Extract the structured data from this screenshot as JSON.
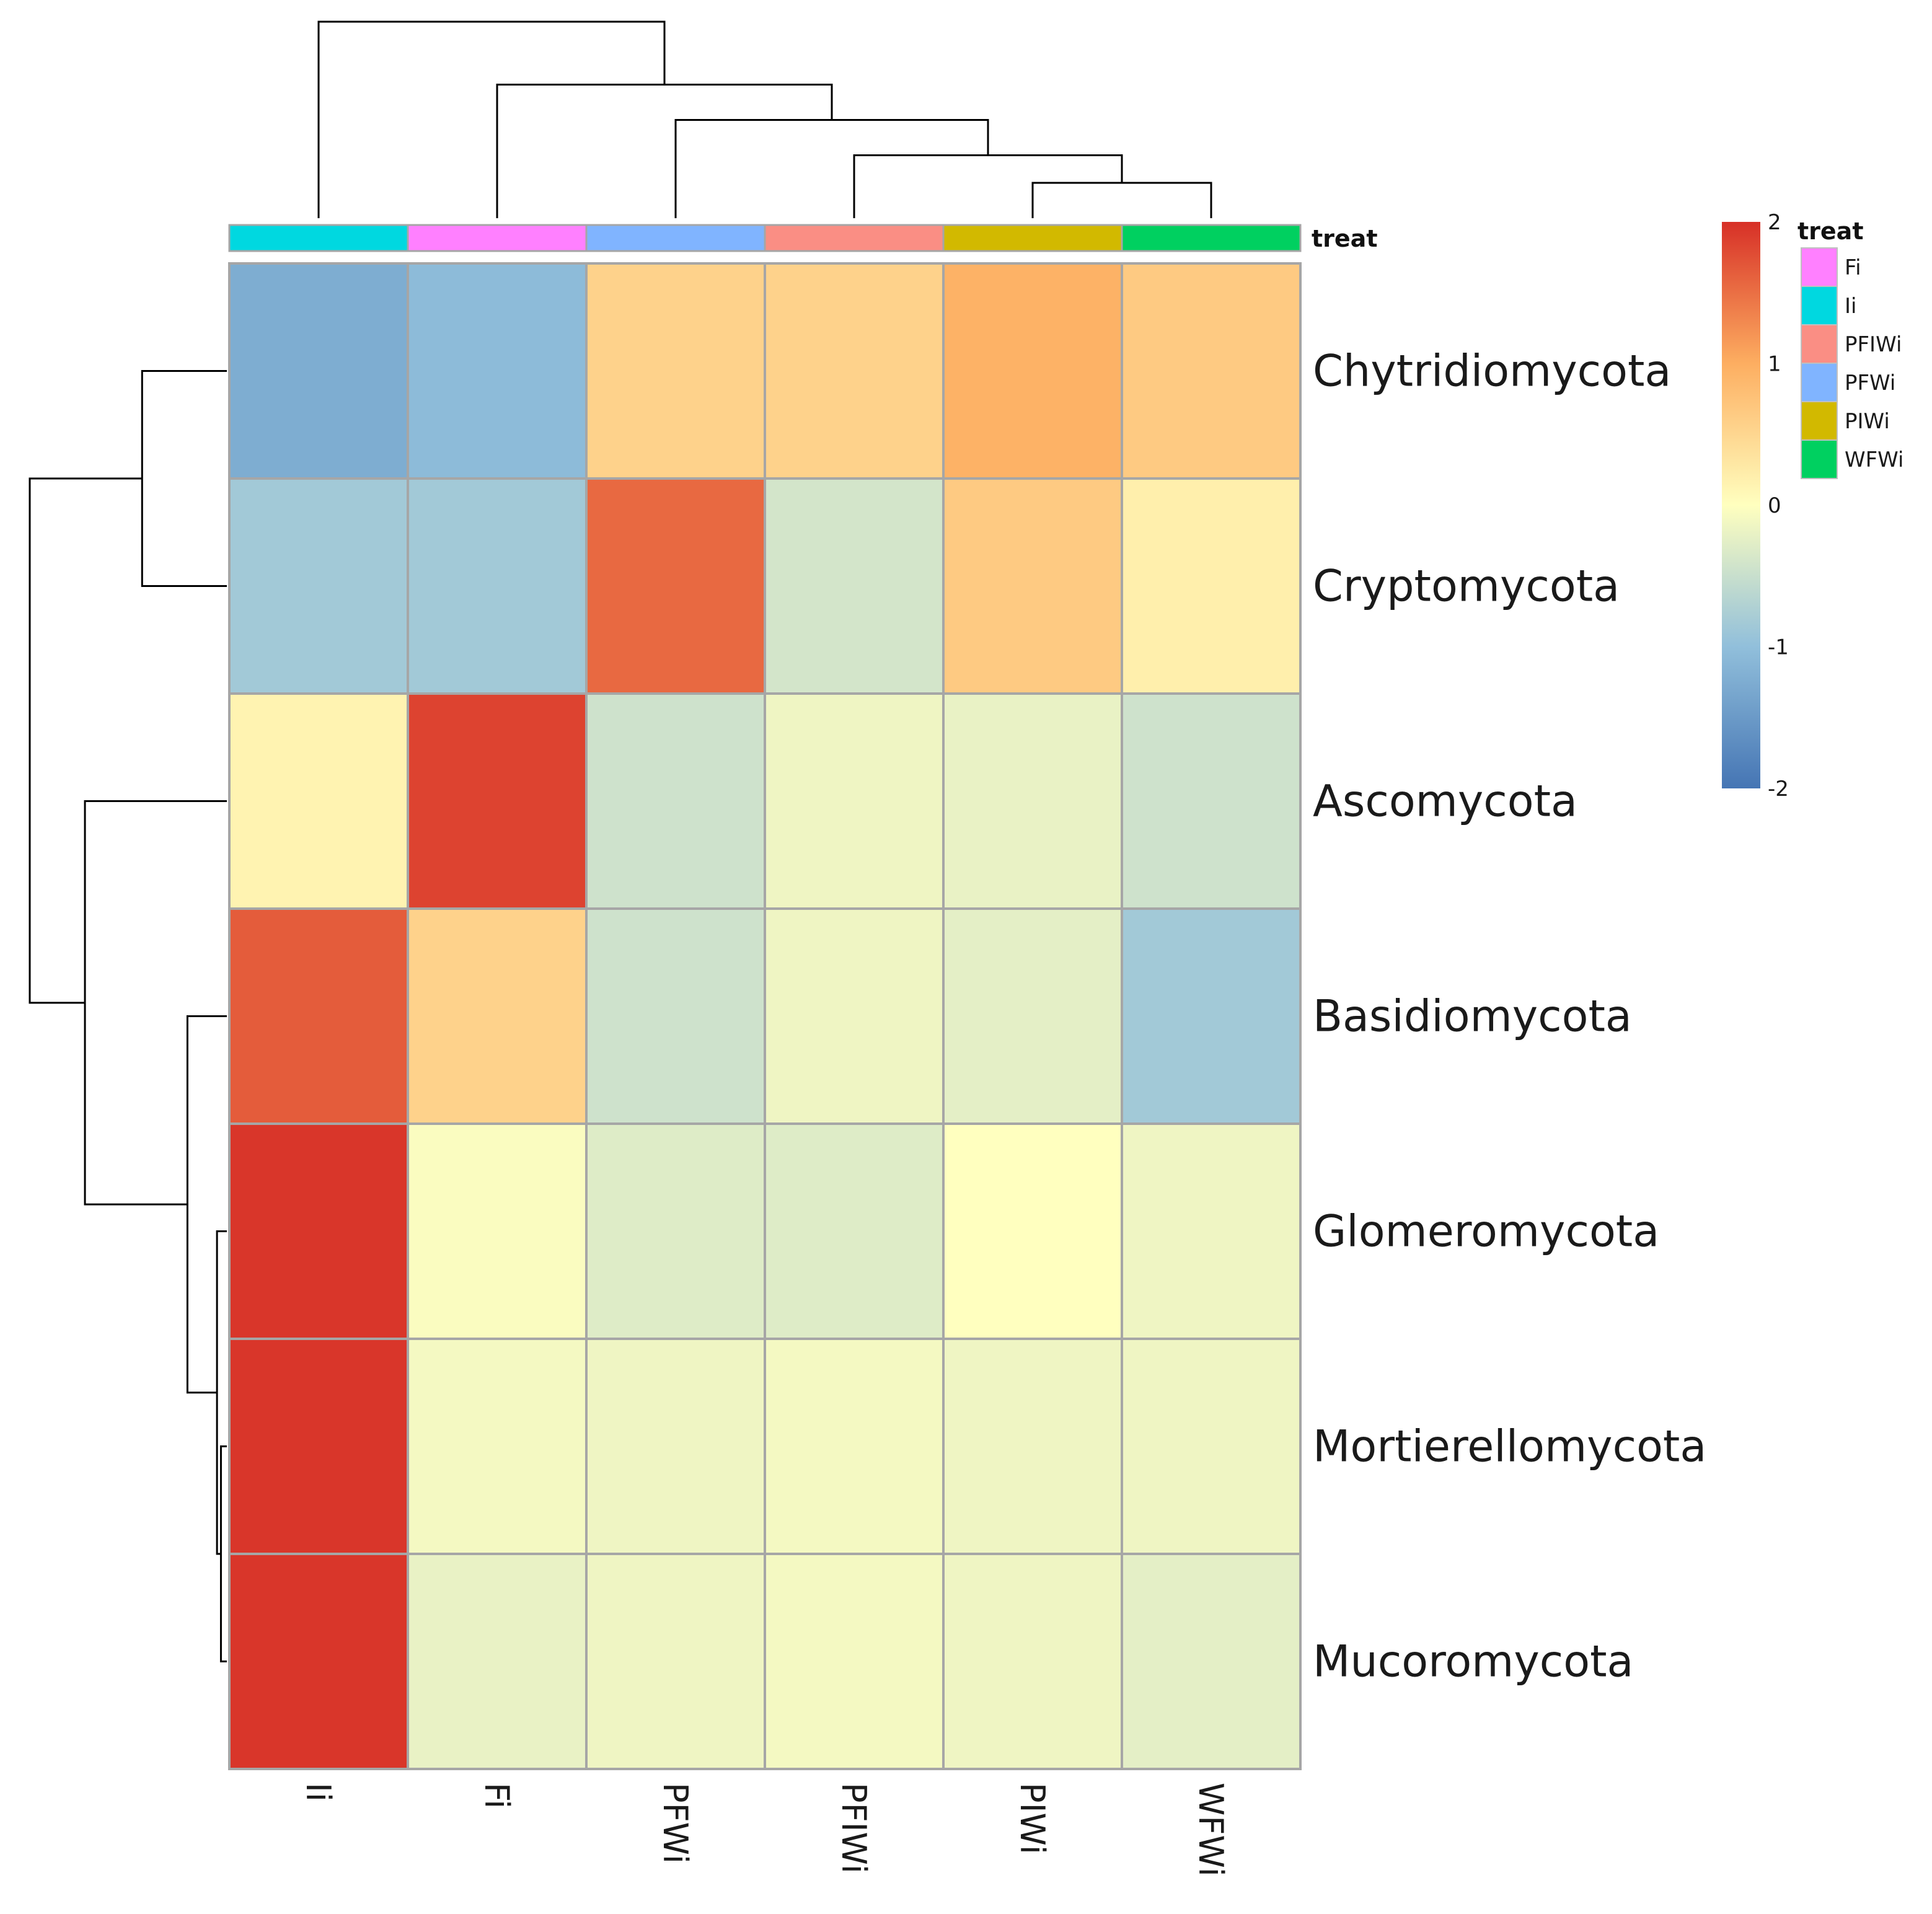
{
  "chart_data": {
    "type": "heatmap",
    "title": "",
    "columns": [
      "Ii",
      "Fi",
      "PFWi",
      "PFIWi",
      "PIWi",
      "WFWi"
    ],
    "rows": [
      "Chytridiomycota",
      "Cryptomycota",
      "Ascomycota",
      "Basidiomycota",
      "Glomeromycota",
      "Mortierellomycota",
      "Mucoromycota"
    ],
    "values": [
      [
        -1.25,
        -1.05,
        0.55,
        0.55,
        0.95,
        0.65
      ],
      [
        -0.85,
        -0.85,
        1.55,
        -0.4,
        0.65,
        0.2
      ],
      [
        0.15,
        1.85,
        -0.45,
        -0.15,
        -0.2,
        -0.45
      ],
      [
        1.65,
        0.55,
        -0.45,
        -0.15,
        -0.25,
        -0.85
      ],
      [
        1.95,
        -0.05,
        -0.3,
        -0.3,
        0.0,
        -0.15
      ],
      [
        1.95,
        -0.1,
        -0.15,
        -0.1,
        -0.15,
        -0.15
      ],
      [
        1.95,
        -0.2,
        -0.15,
        -0.1,
        -0.15,
        -0.25
      ]
    ],
    "color_scale": {
      "min": -2,
      "max": 2,
      "ticks": [
        "2",
        "1",
        "0",
        "-1",
        "-2"
      ],
      "tick_values": [
        2,
        1,
        0,
        -1,
        -2
      ],
      "colors": [
        "#4575b4",
        "#91bfdb",
        "#ffffbf",
        "#fdae61",
        "#d73027"
      ]
    },
    "annotation": {
      "title": "treat",
      "column_treat": [
        "Ii",
        "Fi",
        "PFWi",
        "PFIWi",
        "PIWi",
        "WFWi"
      ],
      "legend": [
        {
          "label": "Fi",
          "color": "#ff80ff"
        },
        {
          "label": "Ii",
          "color": "#00d8e0"
        },
        {
          "label": "PFIWi",
          "color": "#fa8e84"
        },
        {
          "label": "PFWi",
          "color": "#80b4ff"
        },
        {
          "label": "PIWi",
          "color": "#d2b900"
        },
        {
          "label": "WFWi",
          "color": "#00d060"
        }
      ]
    },
    "col_dendrogram": [
      {
        "a": 4,
        "b": 5,
        "h": 0.18
      },
      {
        "a": 3,
        "b": 4.5,
        "h": 0.32
      },
      {
        "a": 2,
        "b": 3.75,
        "h": 0.5
      },
      {
        "a": 1,
        "b": 2.875,
        "h": 0.68
      },
      {
        "a": 0,
        "b": 1.9375,
        "h": 1.0
      }
    ],
    "row_dendrogram": [
      {
        "a": 5,
        "b": 6,
        "h": 0.03
      },
      {
        "a": 4,
        "b": 5.5,
        "h": 0.05
      },
      {
        "a": 3,
        "b": 4.75,
        "h": 0.2
      },
      {
        "a": 2,
        "b": 3.875,
        "h": 0.72
      },
      {
        "a": 0,
        "b": 1,
        "h": 0.43
      },
      {
        "a": 0.5,
        "b": 2.9375,
        "h": 1.0
      }
    ]
  }
}
